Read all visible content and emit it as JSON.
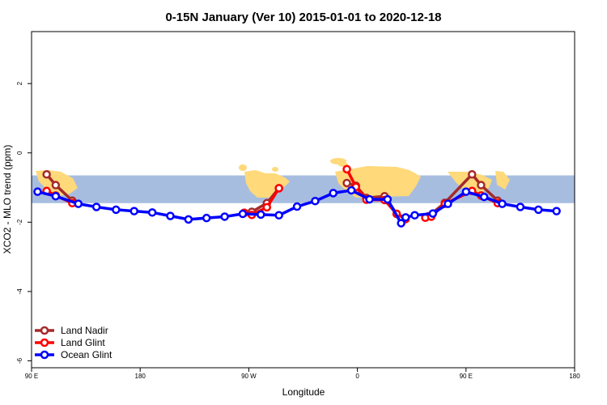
{
  "chart_data": {
    "type": "line",
    "title": "0-15N January (Ver 10)   2015-01-01 to 2020-12-18",
    "xlabel": "Longitude",
    "ylabel": "XCO2 - MLO trend (ppm)",
    "xlim": [
      30,
      390
    ],
    "ylim": [
      -6.2,
      3.5
    ],
    "x_ticks": [
      {
        "value": 30,
        "label": "90 E"
      },
      {
        "value": 102,
        "label": "180"
      },
      {
        "value": 174,
        "label": "90 W"
      },
      {
        "value": 246,
        "label": "0"
      },
      {
        "value": 318,
        "label": "90 E"
      },
      {
        "value": 390,
        "label": "180"
      }
    ],
    "y_ticks": [
      {
        "value": 2,
        "label": "2"
      },
      {
        "value": 0,
        "label": "0"
      },
      {
        "value": -2,
        "label": "-2"
      },
      {
        "value": -4,
        "label": "-4"
      },
      {
        "value": -6,
        "label": "-6"
      }
    ],
    "latitude_band": {
      "ymin": -1.45,
      "ymax": -0.65,
      "color": "#a7bde0"
    },
    "land_color": "#ffd97a",
    "series": [
      {
        "name": "Land Nadir",
        "color": "#a52a2a",
        "segments": [
          [
            [
              40,
              -0.62
            ],
            [
              46,
              -0.93
            ],
            [
              57,
              -1.38
            ]
          ],
          [
            [
              171,
              -1.73
            ],
            [
              176,
              -1.7
            ],
            [
              186,
              -1.45
            ],
            [
              194,
              -1.02
            ]
          ],
          [
            [
              239,
              -0.87
            ],
            [
              245,
              -0.95
            ],
            [
              252,
              -1.3
            ],
            [
              264,
              -1.25
            ],
            [
              272,
              -1.76
            ],
            [
              278,
              -1.88
            ]
          ],
          [
            [
              293,
              -1.83
            ],
            [
              304,
              -1.44
            ],
            [
              322,
              -0.62
            ],
            [
              328,
              -0.93
            ],
            [
              339,
              -1.38
            ]
          ]
        ]
      },
      {
        "name": "Land Glint",
        "color": "#ff0000",
        "segments": [
          [
            [
              40,
              -1.1
            ],
            [
              46,
              -1.23
            ],
            [
              57,
              -1.45
            ]
          ],
          [
            [
              171,
              -1.73
            ],
            [
              176,
              -1.79
            ],
            [
              186,
              -1.57
            ],
            [
              194,
              -1.02
            ]
          ],
          [
            [
              239,
              -0.47
            ],
            [
              245,
              -0.98
            ],
            [
              252,
              -1.35
            ],
            [
              264,
              -1.36
            ],
            [
              272,
              -1.76
            ],
            [
              278,
              -1.91
            ]
          ],
          [
            [
              291,
              -1.87
            ],
            [
              295,
              -1.84
            ],
            [
              304,
              -1.47
            ],
            [
              322,
              -1.1
            ],
            [
              328,
              -1.23
            ],
            [
              339,
              -1.45
            ]
          ]
        ]
      },
      {
        "name": "Ocean Glint",
        "color": "#0000ff",
        "segments": [
          [
            [
              34,
              -1.12
            ],
            [
              46,
              -1.25
            ],
            [
              61,
              -1.47
            ],
            [
              73,
              -1.56
            ],
            [
              86,
              -1.64
            ],
            [
              98,
              -1.68
            ],
            [
              110,
              -1.72
            ],
            [
              122,
              -1.82
            ],
            [
              134,
              -1.92
            ],
            [
              146,
              -1.88
            ],
            [
              158,
              -1.84
            ],
            [
              170,
              -1.76
            ],
            [
              182,
              -1.78
            ],
            [
              194,
              -1.8
            ],
            [
              206,
              -1.55
            ],
            [
              218,
              -1.39
            ],
            [
              230,
              -1.16
            ],
            [
              242,
              -1.08
            ],
            [
              254,
              -1.34
            ],
            [
              266,
              -1.34
            ],
            [
              275,
              -2.03
            ],
            [
              278,
              -1.86
            ],
            [
              284,
              -1.8
            ],
            [
              296,
              -1.75
            ],
            [
              306,
              -1.47
            ],
            [
              318,
              -1.12
            ],
            [
              330,
              -1.27
            ],
            [
              342,
              -1.47
            ],
            [
              354,
              -1.56
            ],
            [
              366,
              -1.64
            ],
            [
              378,
              -1.68
            ]
          ]
        ]
      }
    ],
    "legend": {
      "position": "bottom-left",
      "entries": [
        "Land Nadir",
        "Land Glint",
        "Ocean Glint"
      ]
    }
  }
}
